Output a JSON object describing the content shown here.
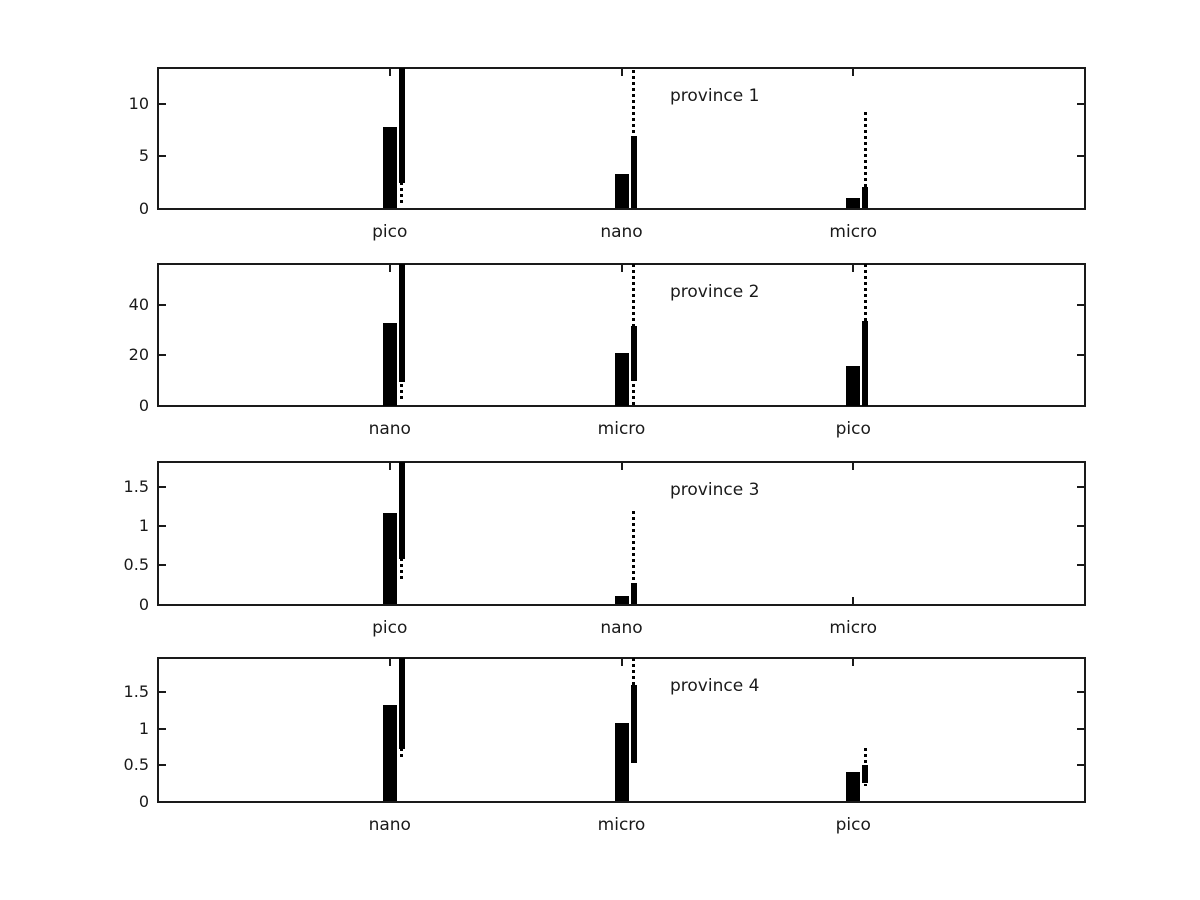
{
  "figure": {
    "background": "#ffffff",
    "bar_color": "#000000",
    "axis_color": "#1a1a1a",
    "text_color": "#1a1a1a"
  },
  "chart_data": {
    "type": "bar",
    "title": "",
    "xlabel": "",
    "ylabel": "",
    "grid": false,
    "legend": "none",
    "panels": [
      {
        "title": "province 1",
        "categories": [
          "pico",
          "nano",
          "micro"
        ],
        "yticks": [
          0,
          5,
          10
        ],
        "ylim": [
          0,
          13.5
        ],
        "bars": [
          7.8,
          3.35,
          1.0
        ],
        "error_solid_ranges": [
          [
            2.45,
            13.5
          ],
          [
            0,
            7.0
          ],
          [
            0,
            2.1
          ]
        ],
        "error_dotted_ranges": [
          [
            0.4,
            13.5
          ],
          [
            0,
            13.3
          ],
          [
            0,
            9.3
          ]
        ]
      },
      {
        "title": "province 2",
        "categories": [
          "nano",
          "micro",
          "pico"
        ],
        "yticks": [
          0,
          20,
          40
        ],
        "ylim": [
          0,
          56
        ],
        "bars": [
          32.8,
          21.0,
          15.7
        ],
        "error_solid_ranges": [
          [
            9.5,
            56
          ],
          [
            9.9,
            31.7
          ],
          [
            0,
            33.5
          ]
        ],
        "error_dotted_ranges": [
          [
            1.6,
            56
          ],
          [
            0.3,
            56
          ],
          [
            0,
            56
          ]
        ]
      },
      {
        "title": "province 3",
        "categories": [
          "pico",
          "nano",
          "micro"
        ],
        "yticks": [
          0,
          0.5,
          1,
          1.5
        ],
        "ylim": [
          0,
          1.82
        ],
        "bars": [
          1.17,
          0.11,
          null
        ],
        "error_solid_ranges": [
          [
            0.58,
            1.82
          ],
          [
            0,
            0.27
          ],
          null
        ],
        "error_dotted_ranges": [
          [
            0.3,
            1.82
          ],
          [
            0,
            1.2
          ],
          null
        ]
      },
      {
        "title": "province 4",
        "categories": [
          "nano",
          "micro",
          "pico"
        ],
        "yticks": [
          0,
          0.5,
          1,
          1.5
        ],
        "ylim": [
          0,
          1.97
        ],
        "bars": [
          1.33,
          1.08,
          0.4
        ],
        "error_solid_ranges": [
          [
            0.72,
            1.97
          ],
          [
            0.53,
            1.6
          ],
          [
            0.25,
            0.5
          ]
        ],
        "error_dotted_ranges": [
          [
            0.57,
            1.97
          ],
          [
            0.53,
            1.97
          ],
          [
            0.21,
            0.73
          ]
        ]
      }
    ]
  }
}
